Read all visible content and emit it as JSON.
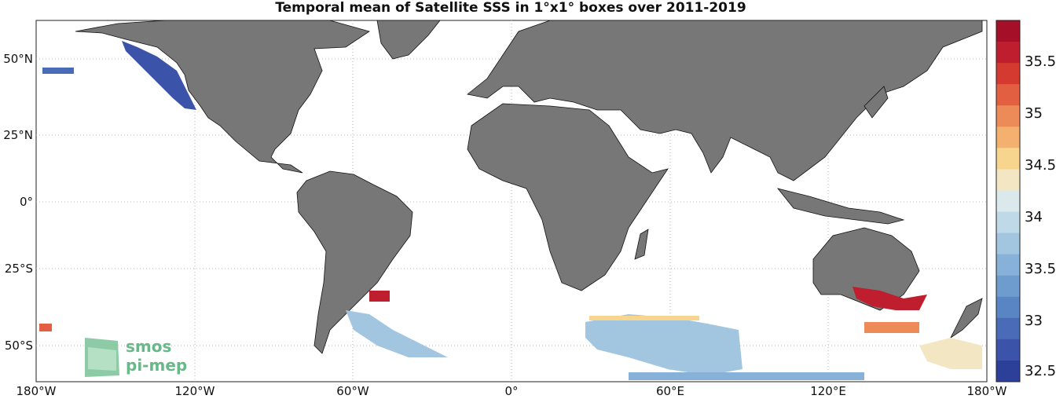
{
  "title": "Temporal mean of Satellite SSS in 1°x1° boxes over 2011-2019",
  "x_ticks": [
    "180°W",
    "120°W",
    "60°W",
    "0°",
    "60°E",
    "120°E",
    "180°W"
  ],
  "y_ticks": [
    "50°N",
    "25°N",
    "0°",
    "25°S",
    "50°S"
  ],
  "colorbar": {
    "ticks": [
      "35.5",
      "35",
      "34.5",
      "34",
      "33.5",
      "33",
      "32.5"
    ],
    "colors": [
      "#2c3f99",
      "#3b54a9",
      "#4a6cb8",
      "#5a85c4",
      "#6f9ccf",
      "#87b1d8",
      "#a2c6e0",
      "#bfd9e8",
      "#dce9ec",
      "#f2e7c2",
      "#f7d58f",
      "#f3b06f",
      "#ec8b58",
      "#e35f42",
      "#d43a30",
      "#bf1e2e",
      "#a50f28"
    ]
  },
  "land_color": "#777777",
  "logo": {
    "line1": "smos",
    "line2": "pi-mep"
  }
}
